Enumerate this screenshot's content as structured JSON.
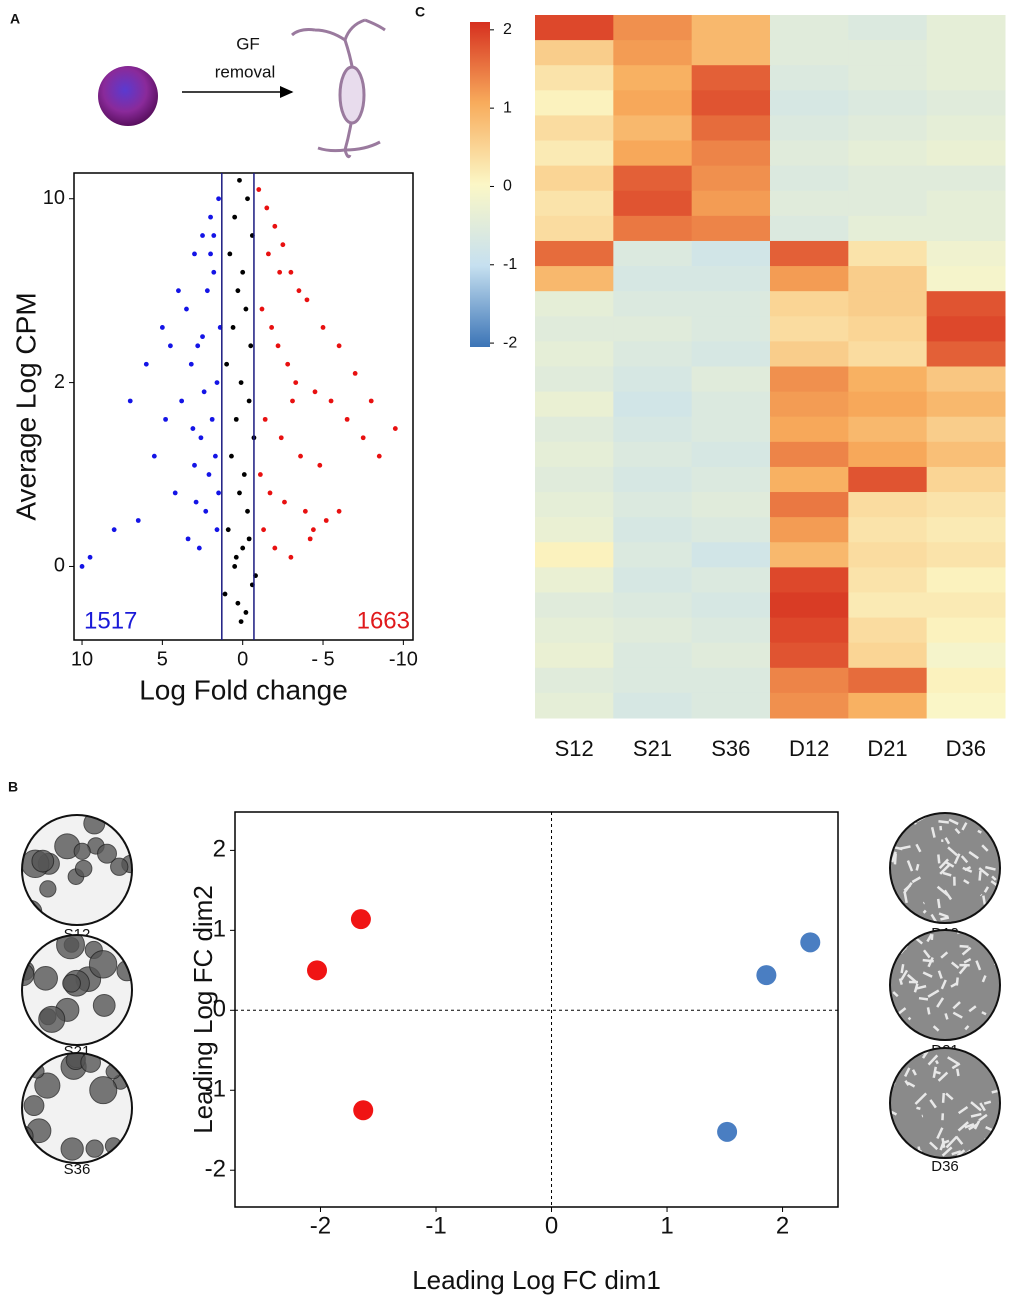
{
  "panels": [
    "A",
    "B",
    "C"
  ],
  "schematic": {
    "label_lines": [
      "GF",
      "removal"
    ]
  },
  "images": {
    "left": [
      "S12",
      "S21",
      "S36"
    ],
    "right": [
      "D12",
      "D21",
      "D36"
    ]
  },
  "chart_data": [
    {
      "type": "scatter",
      "xlabel": "Log Fold change",
      "ylabel": "Average Log CPM",
      "xlim": [
        10.5,
        -10.6
      ],
      "ylim": [
        -0.4,
        2.14
      ],
      "xticks": [
        10,
        5,
        0,
        {
          "value": -5,
          "label": "- 5"
        },
        -10
      ],
      "yticks": [
        {
          "value": 0,
          "label": "0"
        },
        {
          "value": 1,
          "label": "2"
        },
        {
          "value": 2,
          "label": "10"
        }
      ],
      "vlines": [
        1.3,
        -0.7
      ],
      "annotations": [
        {
          "text": "1517",
          "color": "#1a1ad8"
        },
        {
          "text": "1663",
          "color": "#e0191b"
        }
      ],
      "series": [
        {
          "color": "#1414e6",
          "x": [
            1.5,
            2,
            2.5,
            3,
            1.8,
            2.2,
            3.5,
            4,
            1.4,
            2.8,
            3.2,
            1.6,
            2.4,
            4.5,
            5,
            6,
            1.9,
            2.6,
            3.8,
            7,
            1.7,
            2.1,
            3,
            5.5,
            1.5,
            2.3,
            2.9,
            4.2,
            8,
            9.5,
            1.6,
            2.7,
            3.4,
            6.5,
            1.8,
            2,
            2.5,
            3.1,
            4.8,
            10
          ],
          "values": [
            2,
            1.9,
            1.8,
            1.7,
            1.6,
            1.5,
            1.4,
            1.5,
            1.3,
            1.2,
            1.1,
            1,
            0.95,
            1.2,
            1.3,
            1.1,
            0.8,
            0.7,
            0.9,
            0.9,
            0.6,
            0.5,
            0.55,
            0.6,
            0.4,
            0.3,
            0.35,
            0.4,
            0.2,
            0.05,
            0.2,
            0.1,
            0.15,
            0.25,
            1.8,
            1.7,
            1.25,
            0.75,
            0.8,
            0.0
          ]
        },
        {
          "color": "#e81010",
          "x": [
            -1,
            -1.5,
            -2,
            -2.5,
            -3,
            -3.5,
            -4,
            -5,
            -6,
            -7,
            -8,
            -9.5,
            -1.2,
            -1.8,
            -2.2,
            -2.8,
            -3.3,
            -4.5,
            -5.5,
            -6.5,
            -7.5,
            -1.4,
            -2.4,
            -3.6,
            -4.8,
            -1.1,
            -1.7,
            -2.6,
            -3.9,
            -5.2,
            -1.3,
            -2,
            -3,
            -4.2,
            -6,
            -8.5,
            -1.6,
            -2.3,
            -3.1,
            -4.4
          ],
          "values": [
            2.05,
            1.95,
            1.85,
            1.75,
            1.6,
            1.5,
            1.45,
            1.3,
            1.2,
            1.05,
            0.9,
            0.75,
            1.4,
            1.3,
            1.2,
            1.1,
            1,
            0.95,
            0.9,
            0.8,
            0.7,
            0.8,
            0.7,
            0.6,
            0.55,
            0.5,
            0.4,
            0.35,
            0.3,
            0.25,
            0.2,
            0.1,
            0.05,
            0.15,
            0.3,
            0.6,
            1.7,
            1.6,
            0.9,
            0.2
          ]
        },
        {
          "color": "#000000",
          "x": [
            0.2,
            -0.3,
            0.5,
            -0.6,
            0.8,
            0,
            0.3,
            -0.2,
            0.6,
            -0.5,
            1,
            0.1,
            -0.4,
            0.4,
            -0.7,
            0.7,
            -0.1,
            0.2,
            -0.3,
            0.9,
            0,
            0.5,
            -0.6,
            0.3,
            -0.2,
            1.1,
            -0.8,
            0.4,
            0.1,
            -0.4
          ],
          "values": [
            2.1,
            2,
            1.9,
            1.8,
            1.7,
            1.6,
            1.5,
            1.4,
            1.3,
            1.2,
            1.1,
            1,
            0.9,
            0.8,
            0.7,
            0.6,
            0.5,
            0.4,
            0.3,
            0.2,
            0.1,
            0,
            -0.1,
            -0.2,
            -0.25,
            -0.15,
            -0.05,
            0.05,
            -0.3,
            0.15
          ]
        }
      ]
    },
    {
      "type": "heatmap",
      "columns": [
        "S12",
        "S21",
        "S36",
        "D12",
        "D21",
        "D36"
      ],
      "matrix": [
        [
          1.9,
          1.3,
          0.9,
          -0.5,
          -0.6,
          -0.4
        ],
        [
          0.6,
          1.2,
          0.9,
          -0.5,
          -0.5,
          -0.4
        ],
        [
          0.3,
          1.0,
          1.7,
          -0.6,
          -0.5,
          -0.4
        ],
        [
          0.1,
          1.1,
          1.8,
          -0.7,
          -0.6,
          -0.5
        ],
        [
          0.4,
          0.9,
          1.6,
          -0.6,
          -0.5,
          -0.4
        ],
        [
          0.2,
          1.1,
          1.4,
          -0.5,
          -0.4,
          -0.3
        ],
        [
          0.5,
          1.7,
          1.3,
          -0.6,
          -0.5,
          -0.5
        ],
        [
          0.3,
          1.8,
          1.2,
          -0.5,
          -0.5,
          -0.4
        ],
        [
          0.4,
          1.5,
          1.4,
          -0.6,
          -0.4,
          -0.4
        ],
        [
          1.6,
          -0.6,
          -0.8,
          1.7,
          0.3,
          -0.2
        ],
        [
          0.9,
          -0.7,
          -0.7,
          1.2,
          0.6,
          -0.1
        ],
        [
          -0.4,
          -0.6,
          -0.6,
          0.5,
          0.6,
          1.8
        ],
        [
          -0.5,
          -0.5,
          -0.6,
          0.4,
          0.5,
          1.9
        ],
        [
          -0.4,
          -0.6,
          -0.7,
          0.6,
          0.4,
          1.7
        ],
        [
          -0.5,
          -0.7,
          -0.5,
          1.3,
          1.0,
          0.7
        ],
        [
          -0.3,
          -0.8,
          -0.6,
          1.2,
          1.1,
          0.9
        ],
        [
          -0.5,
          -0.7,
          -0.6,
          1.1,
          0.9,
          0.6
        ],
        [
          -0.4,
          -0.6,
          -0.7,
          1.4,
          1.1,
          0.8
        ],
        [
          -0.5,
          -0.7,
          -0.6,
          1.0,
          1.8,
          0.5
        ],
        [
          -0.4,
          -0.6,
          -0.5,
          1.5,
          0.4,
          0.3
        ],
        [
          -0.3,
          -0.7,
          -0.6,
          1.2,
          0.3,
          0.2
        ],
        [
          0.1,
          -0.6,
          -0.8,
          0.9,
          0.4,
          0.3
        ],
        [
          -0.3,
          -0.7,
          -0.6,
          1.9,
          0.3,
          0.1
        ],
        [
          -0.5,
          -0.6,
          -0.7,
          2.0,
          0.2,
          0.2
        ],
        [
          -0.4,
          -0.5,
          -0.6,
          1.9,
          0.4,
          0.1
        ],
        [
          -0.3,
          -0.6,
          -0.5,
          1.8,
          0.5,
          -0.1
        ],
        [
          -0.5,
          -0.6,
          -0.6,
          1.4,
          1.6,
          0.1
        ],
        [
          -0.4,
          -0.7,
          -0.6,
          1.3,
          1.0,
          0.0
        ]
      ],
      "colorbar": {
        "lim": [
          -2.05,
          2.1
        ],
        "ticks": [
          2,
          1,
          0,
          -1,
          -2
        ],
        "colors": [
          "#3b74b6",
          "#c6e0f0",
          "#fbf7c6",
          "#f8ac5c",
          "#d6301f"
        ]
      }
    },
    {
      "type": "scatter",
      "xlabel": "Leading Log FC dim1",
      "ylabel": "Leading Log FC dim2",
      "xlim": [
        -2.74,
        2.48
      ],
      "ylim": [
        -2.46,
        2.48
      ],
      "xticks": [
        -2,
        -1,
        0,
        1,
        2
      ],
      "yticks": [
        -2,
        -1,
        0,
        1,
        2
      ],
      "zero_lines": true,
      "series": [
        {
          "color": "#f01414",
          "x": [
            -2.03,
            -1.65,
            -1.63
          ],
          "values": [
            0.5,
            1.14,
            -1.25
          ]
        },
        {
          "color": "#4a7ec2",
          "x": [
            1.86,
            2.24,
            1.52
          ],
          "values": [
            0.44,
            0.85,
            -1.52
          ]
        }
      ]
    }
  ]
}
